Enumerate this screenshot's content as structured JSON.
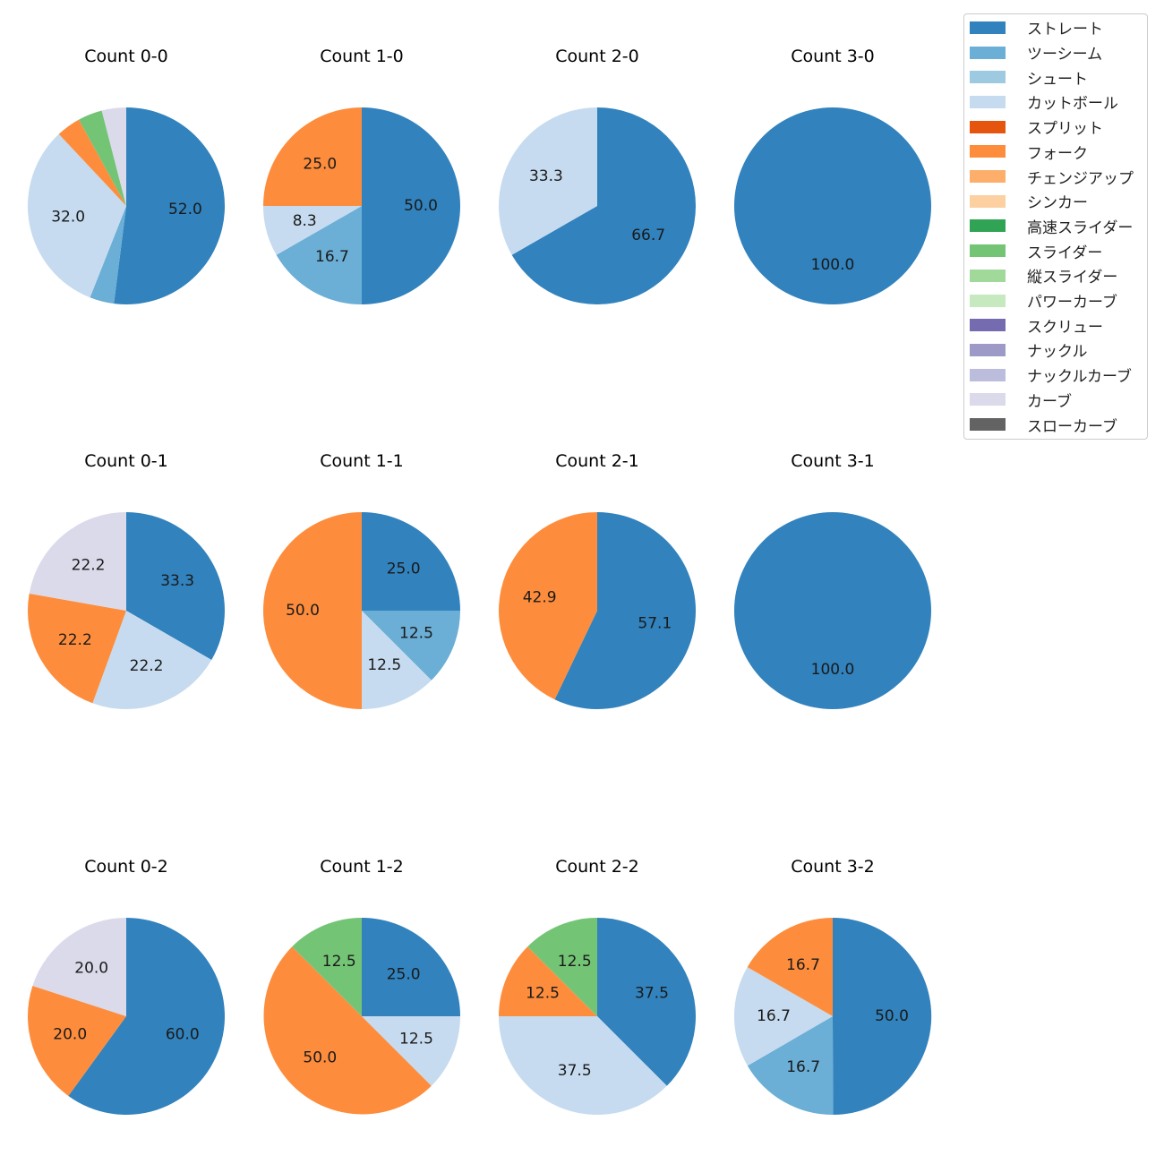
{
  "chart_data": {
    "type": "pie",
    "legend": {
      "placement": "top-right",
      "entries": [
        {
          "name": "ストレート",
          "color": "#3182bd"
        },
        {
          "name": "ツーシーム",
          "color": "#6baed6"
        },
        {
          "name": "シュート",
          "color": "#9ecae1"
        },
        {
          "name": "カットボール",
          "color": "#c6dbef"
        },
        {
          "name": "スプリット",
          "color": "#e6550d"
        },
        {
          "name": "フォーク",
          "color": "#fd8d3c"
        },
        {
          "name": "チェンジアップ",
          "color": "#fdae6b"
        },
        {
          "name": "シンカー",
          "color": "#fdd0a2"
        },
        {
          "name": "高速スライダー",
          "color": "#31a354"
        },
        {
          "name": "スライダー",
          "color": "#74c476"
        },
        {
          "name": "縦スライダー",
          "color": "#a1d99b"
        },
        {
          "name": "パワーカーブ",
          "color": "#c7e9c0"
        },
        {
          "name": "スクリュー",
          "color": "#756bb1"
        },
        {
          "name": "ナックル",
          "color": "#9e9ac8"
        },
        {
          "name": "ナックルカーブ",
          "color": "#bcbddc"
        },
        {
          "name": "カーブ",
          "color": "#dadaeb"
        },
        {
          "name": "スローカーブ",
          "color": "#636363"
        }
      ]
    },
    "charts": [
      {
        "title": "Count 0-0",
        "slices": [
          {
            "name": "ストレート",
            "value": 52.0,
            "label": "52.0"
          },
          {
            "name": "ツーシーム",
            "value": 4.0,
            "label": ""
          },
          {
            "name": "カットボール",
            "value": 32.0,
            "label": "32.0"
          },
          {
            "name": "フォーク",
            "value": 4.0,
            "label": ""
          },
          {
            "name": "スライダー",
            "value": 4.0,
            "label": ""
          },
          {
            "name": "カーブ",
            "value": 4.0,
            "label": ""
          }
        ]
      },
      {
        "title": "Count 1-0",
        "slices": [
          {
            "name": "ストレート",
            "value": 50.0,
            "label": "50.0"
          },
          {
            "name": "ツーシーム",
            "value": 16.7,
            "label": "16.7"
          },
          {
            "name": "カットボール",
            "value": 8.3,
            "label": "8.3"
          },
          {
            "name": "フォーク",
            "value": 25.0,
            "label": "25.0"
          }
        ]
      },
      {
        "title": "Count 2-0",
        "slices": [
          {
            "name": "ストレート",
            "value": 66.7,
            "label": "66.7"
          },
          {
            "name": "カットボール",
            "value": 33.3,
            "label": "33.3"
          }
        ]
      },
      {
        "title": "Count 3-0",
        "slices": [
          {
            "name": "ストレート",
            "value": 100.0,
            "label": "100.0"
          }
        ]
      },
      {
        "title": "Count 0-1",
        "slices": [
          {
            "name": "ストレート",
            "value": 33.3,
            "label": "33.3"
          },
          {
            "name": "カットボール",
            "value": 22.2,
            "label": "22.2"
          },
          {
            "name": "フォーク",
            "value": 22.2,
            "label": "22.2"
          },
          {
            "name": "カーブ",
            "value": 22.2,
            "label": "22.2"
          }
        ]
      },
      {
        "title": "Count 1-1",
        "slices": [
          {
            "name": "ストレート",
            "value": 25.0,
            "label": "25.0"
          },
          {
            "name": "ツーシーム",
            "value": 12.5,
            "label": "12.5"
          },
          {
            "name": "カットボール",
            "value": 12.5,
            "label": "12.5"
          },
          {
            "name": "フォーク",
            "value": 50.0,
            "label": "50.0"
          }
        ]
      },
      {
        "title": "Count 2-1",
        "slices": [
          {
            "name": "ストレート",
            "value": 57.1,
            "label": "57.1"
          },
          {
            "name": "フォーク",
            "value": 42.9,
            "label": "42.9"
          }
        ]
      },
      {
        "title": "Count 3-1",
        "slices": [
          {
            "name": "ストレート",
            "value": 100.0,
            "label": "100.0"
          }
        ]
      },
      {
        "title": "Count 0-2",
        "slices": [
          {
            "name": "ストレート",
            "value": 60.0,
            "label": "60.0"
          },
          {
            "name": "フォーク",
            "value": 20.0,
            "label": "20.0"
          },
          {
            "name": "カーブ",
            "value": 20.0,
            "label": "20.0"
          }
        ]
      },
      {
        "title": "Count 1-2",
        "slices": [
          {
            "name": "ストレート",
            "value": 25.0,
            "label": "25.0"
          },
          {
            "name": "カットボール",
            "value": 12.5,
            "label": "12.5"
          },
          {
            "name": "フォーク",
            "value": 50.0,
            "label": "50.0"
          },
          {
            "name": "スライダー",
            "value": 12.5,
            "label": "12.5"
          }
        ]
      },
      {
        "title": "Count 2-2",
        "slices": [
          {
            "name": "ストレート",
            "value": 37.5,
            "label": "37.5"
          },
          {
            "name": "カットボール",
            "value": 37.5,
            "label": "37.5"
          },
          {
            "name": "フォーク",
            "value": 12.5,
            "label": "12.5"
          },
          {
            "name": "スライダー",
            "value": 12.5,
            "label": "12.5"
          }
        ]
      },
      {
        "title": "Count 3-2",
        "slices": [
          {
            "name": "ストレート",
            "value": 50.0,
            "label": "50.0"
          },
          {
            "name": "ツーシーム",
            "value": 16.7,
            "label": "16.7"
          },
          {
            "name": "カットボール",
            "value": 16.7,
            "label": "16.7"
          },
          {
            "name": "フォーク",
            "value": 16.7,
            "label": "16.7"
          }
        ]
      }
    ]
  }
}
